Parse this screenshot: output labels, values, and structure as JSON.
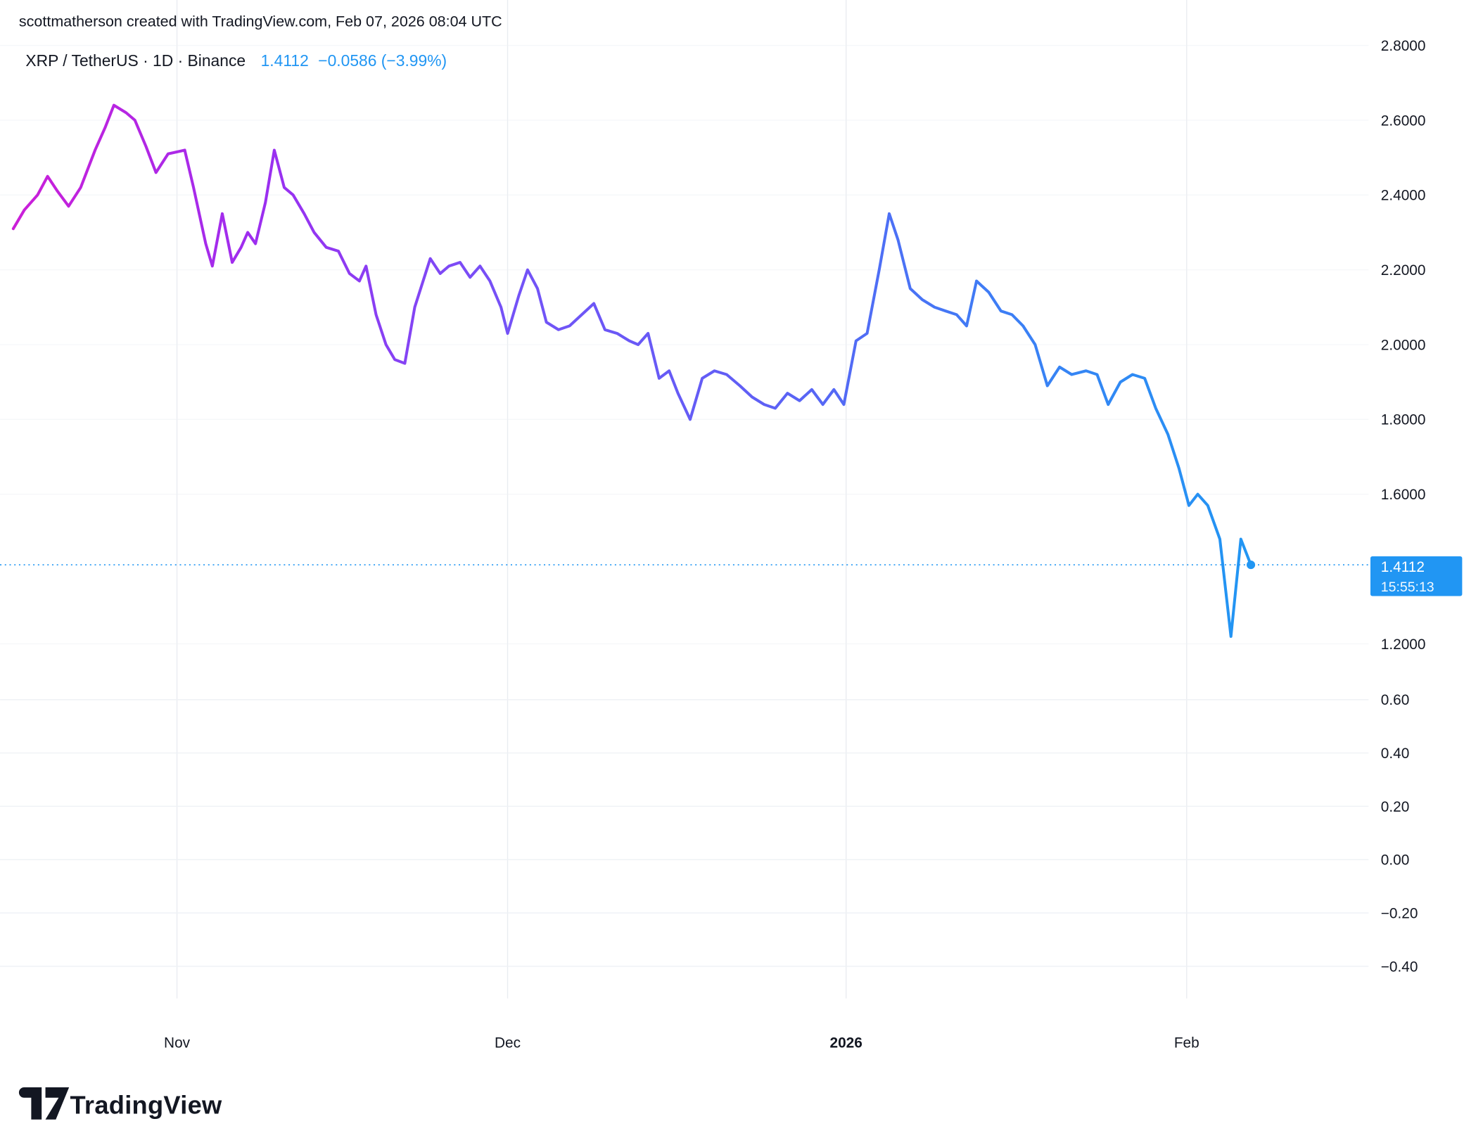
{
  "attribution": "scottmatherson created with TradingView.com, Feb 07, 2026 08:04 UTC",
  "legend": {
    "symbol": "XRP / TetherUS · 1D · Binance",
    "price": "1.4112",
    "change": "−0.0586 (−3.99%)"
  },
  "price_label": {
    "price": "1.4112",
    "countdown": "15:55:13"
  },
  "footer": {
    "brand": "TradingView"
  },
  "colors": {
    "accent_blue": "#2196f3",
    "text": "#131722",
    "grid_vertical": "#e9ecf0",
    "grid_horizontal": "#eef1f5",
    "line_gradient": [
      "#cb1fd8",
      "#9c2ef0",
      "#7452f7",
      "#5f5ff5",
      "#3d7ef5",
      "#2196f3"
    ]
  },
  "chart_data": {
    "type": "line",
    "title": "XRP / TetherUS · 1D · Binance",
    "symbol": "XRP / TetherUS",
    "interval": "1D",
    "exchange": "Binance",
    "last_value": 1.4112,
    "change": -0.0586,
    "change_pct": -3.99,
    "legend_position": "top-left",
    "grid": true,
    "x_axis": {
      "unit": "days-from-first-point",
      "ticks": [
        {
          "label": "Nov",
          "day": 14.8,
          "bold": false
        },
        {
          "label": "Dec",
          "day": 44.7,
          "bold": false
        },
        {
          "label": "2026",
          "day": 75.3,
          "bold": true
        },
        {
          "label": "Feb",
          "day": 106.1,
          "bold": false
        }
      ]
    },
    "y_axis": {
      "labels": [
        {
          "text": "2.8000",
          "value": 2.8
        },
        {
          "text": "2.6000",
          "value": 2.6
        },
        {
          "text": "2.4000",
          "value": 2.4
        },
        {
          "text": "2.2000",
          "value": 2.2
        },
        {
          "text": "2.0000",
          "value": 2.0
        },
        {
          "text": "1.8000",
          "value": 1.8
        },
        {
          "text": "1.6000",
          "value": 1.6
        },
        {
          "text": "1.2000",
          "value": 1.2
        }
      ],
      "visible_price_range": [
        1.2,
        2.8
      ]
    },
    "lower_axis": {
      "labels": [
        {
          "text": "0.60",
          "value": 0.6
        },
        {
          "text": "0.40",
          "value": 0.4
        },
        {
          "text": "0.20",
          "value": 0.2
        },
        {
          "text": "0.00",
          "value": 0.0
        },
        {
          "text": "−0.20",
          "value": -0.2
        },
        {
          "text": "−0.40",
          "value": -0.4
        }
      ]
    },
    "series": [
      {
        "name": "XRP / TetherUS close",
        "points": [
          [
            0,
            2.31
          ],
          [
            1,
            2.36
          ],
          [
            2.2,
            2.4
          ],
          [
            3.1,
            2.45
          ],
          [
            4,
            2.41
          ],
          [
            5,
            2.37
          ],
          [
            6.1,
            2.42
          ],
          [
            7.4,
            2.52
          ],
          [
            8.3,
            2.58
          ],
          [
            9.1,
            2.64
          ],
          [
            10.2,
            2.62
          ],
          [
            11,
            2.6
          ],
          [
            12,
            2.53
          ],
          [
            12.9,
            2.46
          ],
          [
            14,
            2.51
          ],
          [
            15.5,
            2.52
          ],
          [
            16.3,
            2.42
          ],
          [
            17.4,
            2.27
          ],
          [
            18,
            2.21
          ],
          [
            18.9,
            2.35
          ],
          [
            19.8,
            2.22
          ],
          [
            20.6,
            2.26
          ],
          [
            21.2,
            2.3
          ],
          [
            21.9,
            2.27
          ],
          [
            22.8,
            2.38
          ],
          [
            23.6,
            2.52
          ],
          [
            24.5,
            2.42
          ],
          [
            25.3,
            2.4
          ],
          [
            26.3,
            2.35
          ],
          [
            27.2,
            2.3
          ],
          [
            28.3,
            2.26
          ],
          [
            29.4,
            2.25
          ],
          [
            30.4,
            2.19
          ],
          [
            31.3,
            2.17
          ],
          [
            31.9,
            2.21
          ],
          [
            32.8,
            2.08
          ],
          [
            33.7,
            2.0
          ],
          [
            34.5,
            1.96
          ],
          [
            35.4,
            1.95
          ],
          [
            36.3,
            2.1
          ],
          [
            37.7,
            2.23
          ],
          [
            38.6,
            2.19
          ],
          [
            39.4,
            2.21
          ],
          [
            40.4,
            2.22
          ],
          [
            41.3,
            2.18
          ],
          [
            42.2,
            2.21
          ],
          [
            43.1,
            2.17
          ],
          [
            44.1,
            2.1
          ],
          [
            44.7,
            2.03
          ],
          [
            45.7,
            2.13
          ],
          [
            46.5,
            2.2
          ],
          [
            47.4,
            2.15
          ],
          [
            48.2,
            2.06
          ],
          [
            49.3,
            2.04
          ],
          [
            50.3,
            2.05
          ],
          [
            51.4,
            2.08
          ],
          [
            52.5,
            2.11
          ],
          [
            53.5,
            2.04
          ],
          [
            54.6,
            2.03
          ],
          [
            55.7,
            2.01
          ],
          [
            56.5,
            2.0
          ],
          [
            57.4,
            2.03
          ],
          [
            58.4,
            1.91
          ],
          [
            59.3,
            1.93
          ],
          [
            60.1,
            1.87
          ],
          [
            61.2,
            1.8
          ],
          [
            62.3,
            1.91
          ],
          [
            63.4,
            1.93
          ],
          [
            64.5,
            1.92
          ],
          [
            65.7,
            1.89
          ],
          [
            66.8,
            1.86
          ],
          [
            67.9,
            1.84
          ],
          [
            68.9,
            1.83
          ],
          [
            70,
            1.87
          ],
          [
            71.1,
            1.85
          ],
          [
            72.2,
            1.88
          ],
          [
            73.2,
            1.84
          ],
          [
            74.2,
            1.88
          ],
          [
            75.1,
            1.84
          ],
          [
            76.2,
            2.01
          ],
          [
            77.2,
            2.03
          ],
          [
            78.3,
            2.2
          ],
          [
            79.2,
            2.35
          ],
          [
            80,
            2.28
          ],
          [
            81.1,
            2.15
          ],
          [
            82.2,
            2.12
          ],
          [
            83.3,
            2.1
          ],
          [
            84.3,
            2.09
          ],
          [
            85.3,
            2.08
          ],
          [
            86.2,
            2.05
          ],
          [
            87.1,
            2.17
          ],
          [
            88.2,
            2.14
          ],
          [
            89.3,
            2.09
          ],
          [
            90.3,
            2.08
          ],
          [
            91.3,
            2.05
          ],
          [
            92.4,
            2.0
          ],
          [
            93.5,
            1.89
          ],
          [
            94.6,
            1.94
          ],
          [
            95.7,
            1.92
          ],
          [
            97,
            1.93
          ],
          [
            98,
            1.92
          ],
          [
            99,
            1.84
          ],
          [
            100.1,
            1.9
          ],
          [
            101.2,
            1.92
          ],
          [
            102.3,
            1.91
          ],
          [
            103.3,
            1.83
          ],
          [
            104.4,
            1.76
          ],
          [
            105.4,
            1.67
          ],
          [
            106.3,
            1.57
          ],
          [
            107.1,
            1.6
          ],
          [
            108,
            1.57
          ],
          [
            109.1,
            1.48
          ],
          [
            110.1,
            1.22
          ],
          [
            111,
            1.48
          ],
          [
            111.9,
            1.4112
          ]
        ]
      }
    ]
  }
}
